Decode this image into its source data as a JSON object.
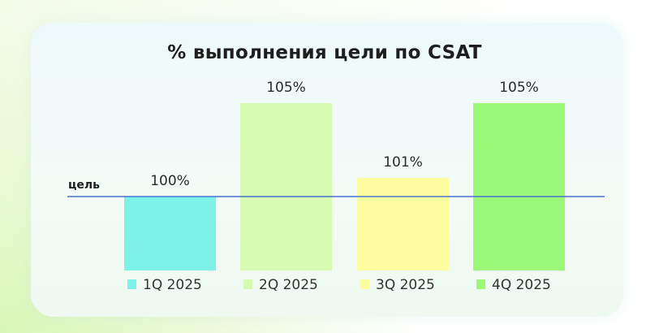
{
  "chart_data": {
    "type": "bar",
    "title": "% выполнения цели по CSAT",
    "categories": [
      "1Q 2025",
      "2Q 2025",
      "3Q 2025",
      "4Q 2025"
    ],
    "values": [
      100,
      105,
      101,
      105
    ],
    "value_labels": [
      "100%",
      "105%",
      "101%",
      "105%"
    ],
    "target": {
      "label": "цель",
      "value": 100,
      "color": "#4a72c8"
    },
    "colors": [
      "#7ef2e8",
      "#d8fbb4",
      "#fbfd9e",
      "#9cf879"
    ],
    "legend": {
      "placement": "bottom"
    },
    "grid": false
  }
}
